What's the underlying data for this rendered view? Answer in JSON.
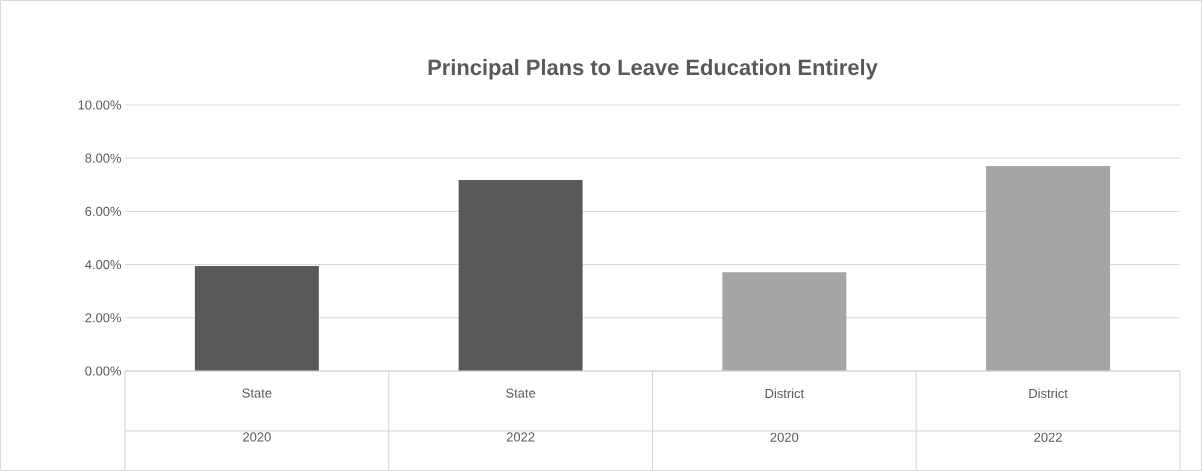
{
  "chart_data": {
    "type": "bar",
    "title": "Principal Plans to Leave Education Entirely",
    "categories": [
      "State 2020",
      "State 2022",
      "District 2020",
      "District 2022"
    ],
    "values": [
      3.95,
      7.18,
      3.71,
      7.71
    ],
    "colors": [
      "#595959",
      "#595959",
      "#a5a5a5",
      "#a5a5a5"
    ],
    "ylim": [
      0,
      10
    ],
    "yticks": [
      {
        "value": 0,
        "label": "0.00%"
      },
      {
        "value": 2,
        "label": "2.00%"
      },
      {
        "value": 4,
        "label": "4.00%"
      },
      {
        "value": 6,
        "label": "6.00%"
      },
      {
        "value": 8,
        "label": "8.00%"
      },
      {
        "value": 10,
        "label": "10.00%"
      }
    ],
    "grid": "y"
  }
}
